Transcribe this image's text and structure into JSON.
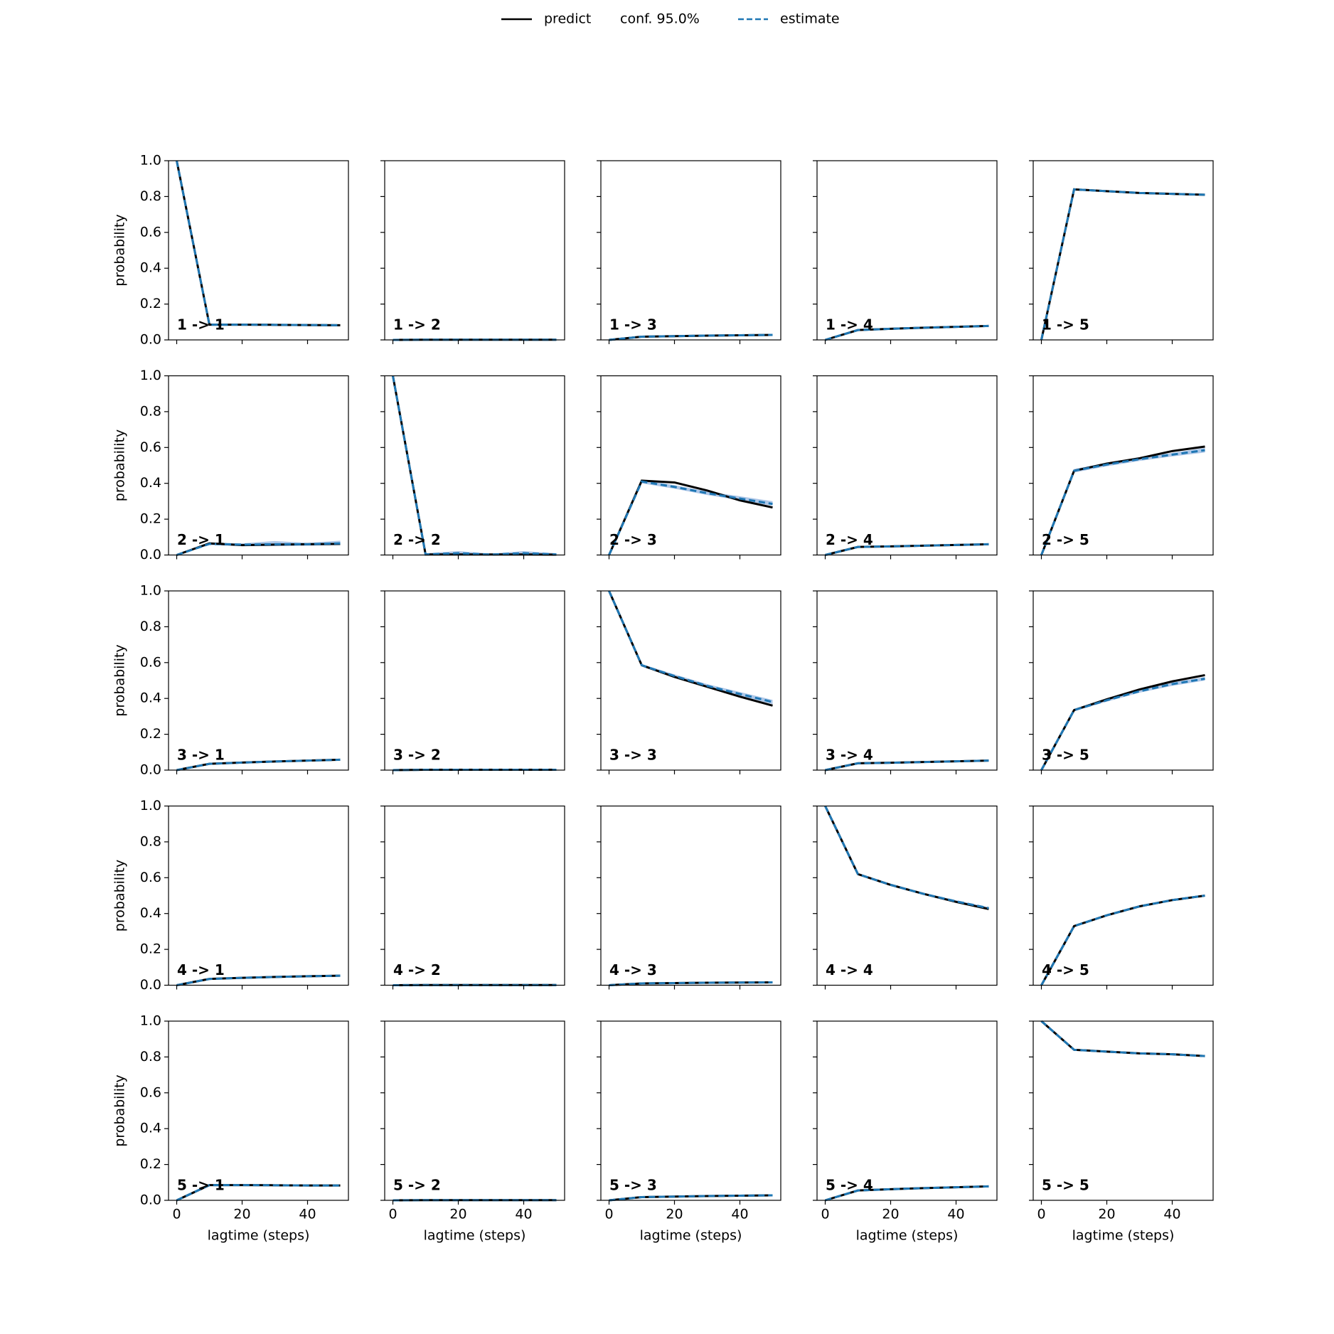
{
  "chart_data": {
    "type": "line",
    "series": [
      {
        "name": "predict",
        "color": "#000000"
      },
      {
        "name": "conf. 95.0%",
        "color": "#aec7e8"
      },
      {
        "name": "estimate",
        "color": "#1f77b4"
      }
    ],
    "x": [
      0,
      10,
      20,
      30,
      40,
      50
    ],
    "xlim": [
      -2.5,
      52.5
    ],
    "xticks": [
      0,
      20,
      40
    ],
    "ylim": [
      0,
      1
    ],
    "yticks": [
      {
        "value": 0,
        "label": "0.0"
      },
      0.2,
      0.4,
      0.6,
      0.8,
      {
        "value": 1,
        "label": "1.0"
      }
    ],
    "xlabel": "lagtime (steps)",
    "ylabel": "probability",
    "panels": [
      {
        "title": "1 -> 1",
        "predict": [
          1,
          0.085,
          0.085,
          0.084,
          0.083,
          0.082
        ],
        "estimate": [
          1,
          0.085,
          0.085,
          0.084,
          0.083,
          0.082
        ],
        "conf_lower": [
          1,
          0.08,
          0.081,
          0.08,
          0.079,
          0.078
        ],
        "conf_upper": [
          1,
          0.09,
          0.089,
          0.088,
          0.087,
          0.086
        ]
      },
      {
        "title": "1 -> 2",
        "predict": [
          0,
          0.001,
          0.001,
          0.001,
          0.001,
          0.001
        ],
        "estimate": [
          0,
          0.001,
          0.001,
          0.001,
          0.001,
          0.001
        ],
        "conf_lower": [
          0,
          0,
          0,
          0,
          0,
          0
        ],
        "conf_upper": [
          0,
          0.002,
          0.002,
          0.002,
          0.002,
          0.002
        ]
      },
      {
        "title": "1 -> 3",
        "predict": [
          0,
          0.018,
          0.021,
          0.024,
          0.026,
          0.028
        ],
        "estimate": [
          0,
          0.018,
          0.021,
          0.024,
          0.026,
          0.028
        ],
        "conf_lower": [
          0,
          0.015,
          0.018,
          0.021,
          0.023,
          0.025
        ],
        "conf_upper": [
          0,
          0.021,
          0.024,
          0.027,
          0.029,
          0.031
        ]
      },
      {
        "title": "1 -> 4",
        "predict": [
          0,
          0.055,
          0.062,
          0.068,
          0.073,
          0.078
        ],
        "estimate": [
          0,
          0.055,
          0.062,
          0.068,
          0.073,
          0.078
        ],
        "conf_lower": [
          0,
          0.051,
          0.058,
          0.064,
          0.069,
          0.074
        ],
        "conf_upper": [
          0,
          0.059,
          0.066,
          0.072,
          0.077,
          0.082
        ]
      },
      {
        "title": "1 -> 5",
        "predict": [
          0,
          0.84,
          0.83,
          0.82,
          0.815,
          0.81
        ],
        "estimate": [
          0,
          0.84,
          0.83,
          0.82,
          0.815,
          0.81
        ],
        "conf_lower": [
          0,
          0.835,
          0.825,
          0.815,
          0.81,
          0.805
        ],
        "conf_upper": [
          0,
          0.845,
          0.835,
          0.825,
          0.82,
          0.815
        ]
      },
      {
        "title": "2 -> 1",
        "predict": [
          0,
          0.065,
          0.055,
          0.058,
          0.06,
          0.062
        ],
        "estimate": [
          0,
          0.062,
          0.058,
          0.06,
          0.06,
          0.065
        ],
        "conf_lower": [
          0,
          0.055,
          0.05,
          0.05,
          0.052,
          0.055
        ],
        "conf_upper": [
          0,
          0.07,
          0.065,
          0.078,
          0.068,
          0.08
        ]
      },
      {
        "title": "2 -> 2",
        "predict": [
          1,
          0.003,
          0.003,
          0.003,
          0.003,
          0.002
        ],
        "estimate": [
          1,
          0.003,
          0.01,
          0.002,
          0.01,
          0.003
        ],
        "conf_lower": [
          1,
          0,
          0,
          0,
          0,
          0
        ],
        "conf_upper": [
          1,
          0.01,
          0.022,
          0.008,
          0.022,
          0.01
        ]
      },
      {
        "title": "2 -> 3",
        "predict": [
          0,
          0.415,
          0.405,
          0.36,
          0.305,
          0.265
        ],
        "estimate": [
          0,
          0.41,
          0.38,
          0.345,
          0.315,
          0.285
        ],
        "conf_lower": [
          0,
          0.4,
          0.37,
          0.335,
          0.305,
          0.275
        ],
        "conf_upper": [
          0,
          0.42,
          0.39,
          0.355,
          0.328,
          0.3
        ]
      },
      {
        "title": "2 -> 4",
        "predict": [
          0,
          0.045,
          0.048,
          0.052,
          0.056,
          0.06
        ],
        "estimate": [
          0,
          0.045,
          0.048,
          0.052,
          0.056,
          0.06
        ],
        "conf_lower": [
          0,
          0.04,
          0.044,
          0.048,
          0.052,
          0.056
        ],
        "conf_upper": [
          0,
          0.05,
          0.052,
          0.056,
          0.06,
          0.064
        ]
      },
      {
        "title": "2 -> 5",
        "predict": [
          0,
          0.47,
          0.51,
          0.54,
          0.58,
          0.605
        ],
        "estimate": [
          0,
          0.47,
          0.505,
          0.535,
          0.56,
          0.585
        ],
        "conf_lower": [
          0,
          0.46,
          0.495,
          0.525,
          0.55,
          0.572
        ],
        "conf_upper": [
          0,
          0.48,
          0.515,
          0.545,
          0.57,
          0.598
        ]
      },
      {
        "title": "3 -> 1",
        "predict": [
          0,
          0.035,
          0.042,
          0.048,
          0.053,
          0.058
        ],
        "estimate": [
          0,
          0.035,
          0.042,
          0.048,
          0.053,
          0.058
        ],
        "conf_lower": [
          0,
          0.031,
          0.038,
          0.044,
          0.049,
          0.054
        ],
        "conf_upper": [
          0,
          0.039,
          0.046,
          0.052,
          0.057,
          0.062
        ]
      },
      {
        "title": "3 -> 2",
        "predict": [
          0,
          0.002,
          0.002,
          0.002,
          0.002,
          0.002
        ],
        "estimate": [
          0,
          0.002,
          0.002,
          0.002,
          0.002,
          0.002
        ],
        "conf_lower": [
          0,
          0,
          0,
          0,
          0,
          0
        ],
        "conf_upper": [
          0,
          0.004,
          0.004,
          0.004,
          0.004,
          0.004
        ]
      },
      {
        "title": "3 -> 3",
        "predict": [
          1,
          0.585,
          0.52,
          0.465,
          0.41,
          0.36
        ],
        "estimate": [
          1,
          0.585,
          0.525,
          0.47,
          0.425,
          0.38
        ],
        "conf_lower": [
          1,
          0.578,
          0.516,
          0.46,
          0.414,
          0.368
        ],
        "conf_upper": [
          1,
          0.592,
          0.534,
          0.48,
          0.436,
          0.392
        ]
      },
      {
        "title": "3 -> 4",
        "predict": [
          0,
          0.038,
          0.041,
          0.045,
          0.049,
          0.053
        ],
        "estimate": [
          0,
          0.038,
          0.041,
          0.045,
          0.049,
          0.053
        ],
        "conf_lower": [
          0,
          0.034,
          0.037,
          0.041,
          0.045,
          0.049
        ],
        "conf_upper": [
          0,
          0.042,
          0.045,
          0.049,
          0.053,
          0.057
        ]
      },
      {
        "title": "3 -> 5",
        "predict": [
          0,
          0.335,
          0.395,
          0.45,
          0.495,
          0.53
        ],
        "estimate": [
          0,
          0.335,
          0.39,
          0.44,
          0.48,
          0.51
        ],
        "conf_lower": [
          0,
          0.328,
          0.382,
          0.432,
          0.47,
          0.5
        ],
        "conf_upper": [
          0,
          0.342,
          0.398,
          0.448,
          0.49,
          0.52
        ]
      },
      {
        "title": "4 -> 1",
        "predict": [
          0,
          0.035,
          0.041,
          0.046,
          0.05,
          0.053
        ],
        "estimate": [
          0,
          0.035,
          0.041,
          0.046,
          0.05,
          0.053
        ],
        "conf_lower": [
          0,
          0.031,
          0.037,
          0.042,
          0.046,
          0.049
        ],
        "conf_upper": [
          0,
          0.039,
          0.045,
          0.05,
          0.054,
          0.057
        ]
      },
      {
        "title": "4 -> 2",
        "predict": [
          0,
          0.001,
          0.001,
          0.001,
          0.001,
          0.001
        ],
        "estimate": [
          0,
          0.001,
          0.001,
          0.001,
          0.001,
          0.001
        ],
        "conf_lower": [
          0,
          0,
          0,
          0,
          0,
          0
        ],
        "conf_upper": [
          0,
          0.002,
          0.002,
          0.002,
          0.002,
          0.002
        ]
      },
      {
        "title": "4 -> 3",
        "predict": [
          0,
          0.01,
          0.012,
          0.014,
          0.015,
          0.016
        ],
        "estimate": [
          0,
          0.01,
          0.012,
          0.014,
          0.015,
          0.016
        ],
        "conf_lower": [
          0,
          0.008,
          0.01,
          0.012,
          0.013,
          0.014
        ],
        "conf_upper": [
          0,
          0.012,
          0.014,
          0.016,
          0.017,
          0.018
        ]
      },
      {
        "title": "4 -> 4",
        "predict": [
          1,
          0.62,
          0.56,
          0.51,
          0.465,
          0.425
        ],
        "estimate": [
          1,
          0.62,
          0.56,
          0.51,
          0.468,
          0.43
        ],
        "conf_lower": [
          1,
          0.614,
          0.554,
          0.504,
          0.462,
          0.424
        ],
        "conf_upper": [
          1,
          0.626,
          0.566,
          0.516,
          0.474,
          0.436
        ]
      },
      {
        "title": "4 -> 5",
        "predict": [
          0,
          0.33,
          0.39,
          0.44,
          0.475,
          0.5
        ],
        "estimate": [
          0,
          0.33,
          0.39,
          0.44,
          0.475,
          0.5
        ],
        "conf_lower": [
          0,
          0.325,
          0.385,
          0.435,
          0.47,
          0.495
        ],
        "conf_upper": [
          0,
          0.335,
          0.395,
          0.445,
          0.48,
          0.505
        ]
      },
      {
        "title": "5 -> 1",
        "predict": [
          0,
          0.085,
          0.085,
          0.084,
          0.083,
          0.083
        ],
        "estimate": [
          0,
          0.085,
          0.085,
          0.084,
          0.083,
          0.083
        ],
        "conf_lower": [
          0,
          0.081,
          0.081,
          0.08,
          0.079,
          0.079
        ],
        "conf_upper": [
          0,
          0.089,
          0.089,
          0.088,
          0.087,
          0.087
        ]
      },
      {
        "title": "5 -> 2",
        "predict": [
          0,
          0.001,
          0.001,
          0.001,
          0.001,
          0.001
        ],
        "estimate": [
          0,
          0.001,
          0.001,
          0.001,
          0.001,
          0.001
        ],
        "conf_lower": [
          0,
          0,
          0,
          0,
          0,
          0
        ],
        "conf_upper": [
          0,
          0.002,
          0.002,
          0.002,
          0.002,
          0.002
        ]
      },
      {
        "title": "5 -> 3",
        "predict": [
          0,
          0.018,
          0.021,
          0.024,
          0.026,
          0.028
        ],
        "estimate": [
          0,
          0.018,
          0.021,
          0.024,
          0.026,
          0.028
        ],
        "conf_lower": [
          0,
          0.015,
          0.018,
          0.021,
          0.023,
          0.025
        ],
        "conf_upper": [
          0,
          0.021,
          0.024,
          0.027,
          0.029,
          0.031
        ]
      },
      {
        "title": "5 -> 4",
        "predict": [
          0,
          0.055,
          0.062,
          0.068,
          0.073,
          0.078
        ],
        "estimate": [
          0,
          0.055,
          0.062,
          0.068,
          0.073,
          0.078
        ],
        "conf_lower": [
          0,
          0.051,
          0.058,
          0.064,
          0.069,
          0.074
        ],
        "conf_upper": [
          0,
          0.059,
          0.066,
          0.072,
          0.077,
          0.082
        ]
      },
      {
        "title": "5 -> 5",
        "predict": [
          1,
          0.84,
          0.83,
          0.82,
          0.815,
          0.805
        ],
        "estimate": [
          1,
          0.84,
          0.83,
          0.82,
          0.815,
          0.805
        ],
        "conf_lower": [
          1,
          0.835,
          0.825,
          0.815,
          0.81,
          0.8
        ],
        "conf_upper": [
          1,
          0.845,
          0.835,
          0.825,
          0.82,
          0.81
        ]
      }
    ]
  }
}
